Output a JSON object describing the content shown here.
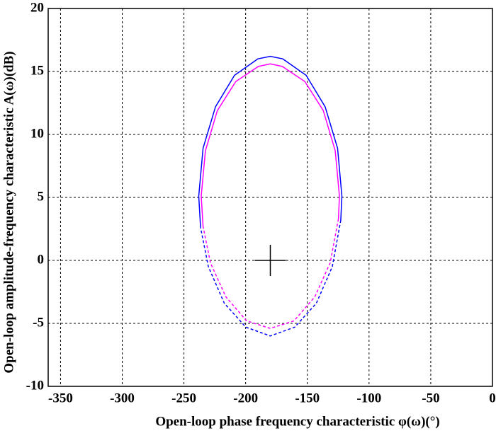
{
  "chart_data": {
    "type": "line",
    "x_label": "Open-loop phase frequency characteristic φ(ω)(°)",
    "y_label": "Open-loop amplitude-frequency characteristic A(ω)(dB)",
    "xlim": [
      -360,
      0
    ],
    "xticks": [
      -350,
      -300,
      -250,
      -200,
      -150,
      -100,
      -50,
      0
    ],
    "ylim": [
      -10,
      20
    ],
    "yticks": [
      -10,
      -5,
      0,
      5,
      10,
      15,
      20
    ],
    "grid": true,
    "series": [
      {
        "color": "#0000ff",
        "dash": false,
        "x": [
          -236.5,
          -238,
          -234.5,
          -224.4,
          -209,
          -190.1,
          -180,
          -169.9,
          -151,
          -135.6,
          -125.5,
          -122,
          -122.9
        ],
        "y": [
          2.6,
          5.1,
          8.9,
          12.2,
          14.7,
          16.0,
          16.2,
          16.0,
          14.7,
          12.2,
          8.9,
          5.1,
          3.2
        ]
      },
      {
        "color": "#0000ff",
        "dash": true,
        "x": [
          -122.9,
          -129.8,
          -142.7,
          -160.2,
          -180,
          -199.8,
          -217.3,
          -230.2,
          -236.5
        ],
        "y": [
          3.2,
          -0.5,
          -3.4,
          -5.3,
          -6.0,
          -5.3,
          -3.4,
          -0.5,
          2.6
        ]
      },
      {
        "color": "#ff00ff",
        "dash": false,
        "x": [
          -234.5,
          -236,
          -232.6,
          -222.9,
          -208,
          -189.7,
          -180,
          -170.3,
          -152,
          -137.1,
          -127.4,
          -124,
          -124.8
        ],
        "y": [
          2.7,
          5.1,
          8.7,
          11.9,
          14.2,
          15.4,
          15.6,
          15.4,
          14.2,
          11.9,
          8.7,
          5.1,
          3.3
        ]
      },
      {
        "color": "#ff00ff",
        "dash": true,
        "x": [
          -124.8,
          -131.5,
          -144,
          -160.8,
          -180,
          -199.2,
          -216,
          -228.5,
          -234.5
        ],
        "y": [
          3.3,
          -0.2,
          -2.9,
          -4.8,
          -5.4,
          -4.8,
          -2.9,
          -0.2,
          2.7
        ]
      }
    ],
    "marker": {
      "x": -180,
      "y": 0
    }
  }
}
